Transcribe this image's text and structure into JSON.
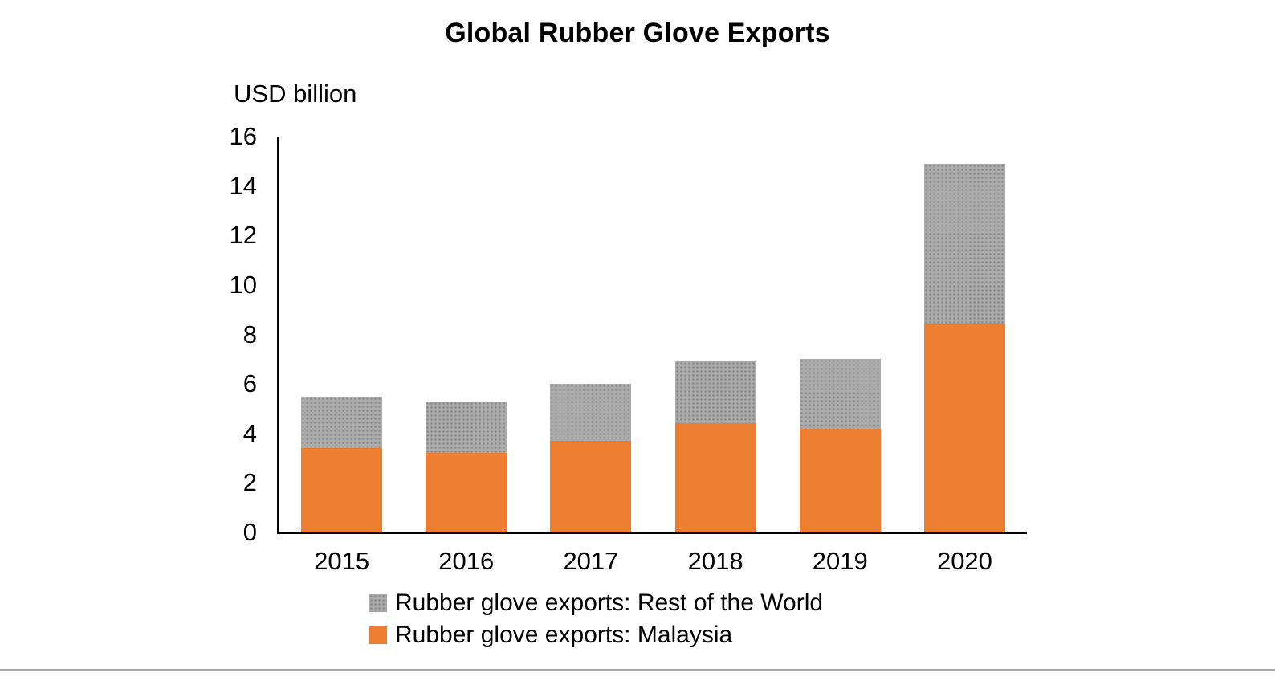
{
  "chart_data": {
    "type": "bar",
    "stacked": true,
    "title": "Global Rubber Glove Exports",
    "ylabel": "USD billion",
    "xlabel": "",
    "ylim": [
      0,
      16
    ],
    "yticks": [
      0,
      2,
      4,
      6,
      8,
      10,
      12,
      14,
      16
    ],
    "categories": [
      "2015",
      "2016",
      "2017",
      "2018",
      "2019",
      "2020"
    ],
    "series": [
      {
        "name": "Rubber glove exports: Malaysia",
        "color": "#ED7D31",
        "pattern": "solid",
        "values": [
          3.4,
          3.2,
          3.7,
          4.4,
          4.2,
          8.4
        ]
      },
      {
        "name": "Rubber glove exports: Rest of the World",
        "color": "#ABABAB",
        "pattern": "dotted",
        "values": [
          2.1,
          2.1,
          2.3,
          2.5,
          2.8,
          6.5
        ]
      }
    ],
    "grid": false,
    "legend_position": "bottom"
  },
  "legend": {
    "items": [
      {
        "label": "Rubber glove exports: Rest of the World",
        "color": "#ABABAB",
        "pattern": "dotted"
      },
      {
        "label": "Rubber glove exports: Malaysia",
        "color": "#ED7D31",
        "pattern": "solid"
      }
    ]
  },
  "colors": {
    "axis": "#000000",
    "text": "#000000",
    "background": "#FFFFFF",
    "bottom_rule": "#A6A9AC"
  }
}
